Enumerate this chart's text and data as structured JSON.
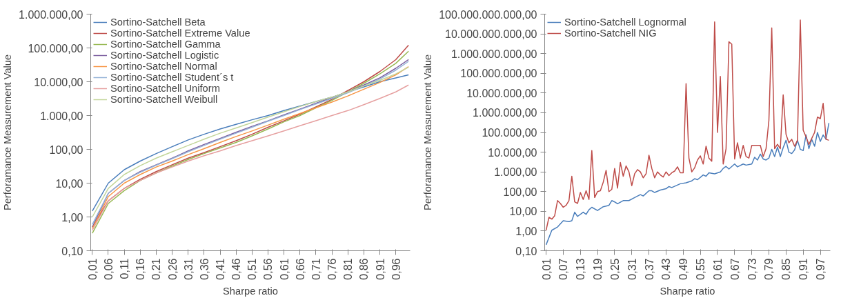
{
  "chart_data": [
    {
      "type": "line",
      "xlabel": "Sharpe ratio",
      "ylabel": "Perforamance Measurement Value",
      "log": "y",
      "legend": "top left",
      "grid": false,
      "marker": "none",
      "line_style": "solid",
      "xlim": [
        0.005,
        1.005
      ],
      "xticks": [
        {
          "value": 0.01,
          "label": "0,01"
        },
        {
          "value": 0.06,
          "label": "0,06"
        },
        {
          "value": 0.11,
          "label": "0,11"
        },
        {
          "value": 0.16,
          "label": "0,16"
        },
        {
          "value": 0.21,
          "label": "0,21"
        },
        {
          "value": 0.26,
          "label": "0,26"
        },
        {
          "value": 0.31,
          "label": "0,31"
        },
        {
          "value": 0.36,
          "label": "0,36"
        },
        {
          "value": 0.41,
          "label": "0,41"
        },
        {
          "value": 0.46,
          "label": "0,46"
        },
        {
          "value": 0.51,
          "label": "0,51"
        },
        {
          "value": 0.56,
          "label": "0,56"
        },
        {
          "value": 0.61,
          "label": "0,61"
        },
        {
          "value": 0.66,
          "label": "0,66"
        },
        {
          "value": 0.71,
          "label": "0,71"
        },
        {
          "value": 0.76,
          "label": "0,76"
        },
        {
          "value": 0.81,
          "label": "0,81"
        },
        {
          "value": 0.86,
          "label": "0,86"
        },
        {
          "value": 0.91,
          "label": "0,91"
        },
        {
          "value": 0.96,
          "label": "0,96"
        }
      ],
      "ylim": [
        0.1,
        1000000
      ],
      "yticks": [
        {
          "value": 0.1,
          "label": "0,10"
        },
        {
          "value": 1,
          "label": "1,00"
        },
        {
          "value": 10,
          "label": "10,00"
        },
        {
          "value": 100,
          "label": "100,00"
        },
        {
          "value": 1000,
          "label": "1.000,00"
        },
        {
          "value": 10000,
          "label": "10.000,00"
        },
        {
          "value": 100000,
          "label": "100.000,00"
        },
        {
          "value": 1000000,
          "label": "1.000.000,00"
        }
      ],
      "x": [
        0.01,
        0.06,
        0.11,
        0.16,
        0.21,
        0.26,
        0.31,
        0.36,
        0.41,
        0.46,
        0.51,
        0.56,
        0.61,
        0.66,
        0.71,
        0.76,
        0.81,
        0.86,
        0.91,
        0.96,
        1.0
      ],
      "series": [
        {
          "name": "Sortino-Satchell Beta",
          "color": "#4a7ebb",
          "values": [
            1.5,
            10,
            25,
            45,
            75,
            120,
            190,
            280,
            400,
            550,
            750,
            1000,
            1400,
            1900,
            2600,
            3500,
            5000,
            7000,
            10000,
            13000,
            16000
          ]
        },
        {
          "name": "Sortino-Satchell Extreme Value",
          "color": "#be4b48",
          "values": [
            0.5,
            3,
            7,
            13,
            22,
            35,
            55,
            80,
            120,
            180,
            280,
            450,
            700,
            1100,
            1800,
            3000,
            5500,
            10000,
            20000,
            45000,
            120000
          ]
        },
        {
          "name": "Sortino-Satchell Gamma",
          "color": "#98b954",
          "values": [
            0.33,
            2.5,
            6,
            12,
            20,
            32,
            50,
            75,
            110,
            160,
            250,
            400,
            650,
            1000,
            1700,
            2800,
            5000,
            9000,
            17000,
            35000,
            80000
          ]
        },
        {
          "name": "Sortino-Satchell Logistic",
          "color": "#7d60a0",
          "values": [
            0.5,
            5,
            12,
            22,
            35,
            55,
            90,
            140,
            210,
            320,
            480,
            700,
            1050,
            1550,
            2300,
            3400,
            5000,
            8000,
            13000,
            25000,
            45000
          ]
        },
        {
          "name": "Sortino-Satchell Normal",
          "color": "#f79646",
          "values": [
            0.45,
            4,
            10,
            18,
            30,
            45,
            70,
            105,
            160,
            240,
            350,
            520,
            780,
            1150,
            1700,
            2500,
            3800,
            6000,
            9500,
            16000,
            28000
          ]
        },
        {
          "name": "Sortino-Satchell Student´s t",
          "color": "#95b3d7",
          "values": [
            0.6,
            5,
            12,
            21,
            34,
            53,
            85,
            130,
            200,
            300,
            450,
            680,
            1000,
            1500,
            2200,
            3200,
            4700,
            7500,
            12000,
            22000,
            40000
          ]
        },
        {
          "name": "Sortino-Satchell Uniform",
          "color": "#e6a0a0",
          "values": [
            0.4,
            3,
            7,
            12,
            20,
            30,
            45,
            65,
            90,
            130,
            180,
            250,
            350,
            500,
            700,
            1000,
            1400,
            2100,
            3200,
            5000,
            8000
          ]
        },
        {
          "name": "Sortino-Satchell Weibull",
          "color": "#c3d69b",
          "values": [
            1.0,
            7,
            18,
            33,
            55,
            85,
            130,
            200,
            300,
            430,
            620,
            900,
            1300,
            1850,
            2600,
            3500,
            5000,
            7500,
            11000,
            17000,
            27000
          ]
        }
      ]
    },
    {
      "type": "line",
      "xlabel": "Sharpe ratio",
      "ylabel": "Perforamance Measurement Value",
      "log": "y",
      "legend": "top left",
      "grid": false,
      "marker": "none",
      "line_style": "solid",
      "xlim": [
        0.005,
        1.005
      ],
      "xticks": [
        {
          "value": 0.01,
          "label": "0,01"
        },
        {
          "value": 0.07,
          "label": "0,07"
        },
        {
          "value": 0.13,
          "label": "0,13"
        },
        {
          "value": 0.19,
          "label": "0,19"
        },
        {
          "value": 0.25,
          "label": "0,25"
        },
        {
          "value": 0.31,
          "label": "0,31"
        },
        {
          "value": 0.37,
          "label": "0,37"
        },
        {
          "value": 0.43,
          "label": "0,43"
        },
        {
          "value": 0.49,
          "label": "0,49"
        },
        {
          "value": 0.55,
          "label": "0,55"
        },
        {
          "value": 0.61,
          "label": "0,61"
        },
        {
          "value": 0.67,
          "label": "0,67"
        },
        {
          "value": 0.73,
          "label": "0,73"
        },
        {
          "value": 0.79,
          "label": "0,79"
        },
        {
          "value": 0.85,
          "label": "0,85"
        },
        {
          "value": 0.91,
          "label": "0,91"
        },
        {
          "value": 0.97,
          "label": "0,97"
        }
      ],
      "ylim": [
        0.1,
        100000000000
      ],
      "yticks": [
        {
          "value": 0.1,
          "label": "0,10"
        },
        {
          "value": 1,
          "label": "1,00"
        },
        {
          "value": 10,
          "label": "10,00"
        },
        {
          "value": 100,
          "label": "100,00"
        },
        {
          "value": 1000,
          "label": "1.000,00"
        },
        {
          "value": 10000,
          "label": "10.000,00"
        },
        {
          "value": 100000,
          "label": "100.000,00"
        },
        {
          "value": 1000000,
          "label": "1.000.000,00"
        },
        {
          "value": 10000000,
          "label": "10.000.000,00"
        },
        {
          "value": 100000000,
          "label": "100.000.000,00"
        },
        {
          "value": 1000000000,
          "label": "1.000.000.000,00"
        },
        {
          "value": 10000000000,
          "label": "10.000.000.000,00"
        },
        {
          "value": 100000000000,
          "label": "100.000.000.000,00"
        }
      ],
      "series": [
        {
          "name": "Sortino-Satchell Lognormal",
          "color": "#4a7ebb",
          "x": [
            0.01,
            0.03,
            0.05,
            0.07,
            0.09,
            0.1,
            0.11,
            0.12,
            0.14,
            0.15,
            0.16,
            0.17,
            0.19,
            0.21,
            0.23,
            0.24,
            0.25,
            0.26,
            0.28,
            0.3,
            0.32,
            0.34,
            0.35,
            0.37,
            0.38,
            0.39,
            0.41,
            0.43,
            0.44,
            0.45,
            0.48,
            0.5,
            0.52,
            0.53,
            0.54,
            0.56,
            0.57,
            0.58,
            0.6,
            0.62,
            0.63,
            0.64,
            0.65,
            0.67,
            0.68,
            0.7,
            0.71,
            0.73,
            0.74,
            0.75,
            0.76,
            0.77,
            0.78,
            0.79,
            0.8,
            0.81,
            0.82,
            0.83,
            0.84,
            0.85,
            0.86,
            0.87,
            0.88,
            0.89,
            0.9,
            0.91,
            0.92,
            0.93,
            0.94,
            0.95,
            0.96,
            0.97,
            0.98,
            0.99,
            1.0
          ],
          "values": [
            0.2,
            1.1,
            1.6,
            3.3,
            3,
            3.3,
            9,
            5.5,
            9,
            7,
            12,
            16,
            11,
            17,
            20,
            35,
            30,
            24,
            35,
            35,
            50,
            70,
            60,
            110,
            110,
            90,
            120,
            140,
            180,
            160,
            250,
            280,
            350,
            450,
            400,
            700,
            600,
            900,
            800,
            1000,
            1500,
            1900,
            1400,
            2500,
            1800,
            2500,
            2200,
            2500,
            5500,
            4000,
            8000,
            4500,
            4000,
            5000,
            14000,
            6000,
            18000,
            6000,
            17000,
            40000,
            10000,
            8500,
            13000,
            40000,
            14000,
            12000,
            75000,
            15000,
            45000,
            20000,
            100000,
            35000,
            75000,
            45000,
            300000
          ]
        },
        {
          "name": "Sortino-Satchell NIG",
          "color": "#be4b48",
          "x": [
            0.01,
            0.02,
            0.03,
            0.04,
            0.05,
            0.06,
            0.07,
            0.08,
            0.09,
            0.1,
            0.11,
            0.12,
            0.13,
            0.14,
            0.15,
            0.16,
            0.17,
            0.18,
            0.19,
            0.2,
            0.21,
            0.22,
            0.23,
            0.24,
            0.25,
            0.26,
            0.27,
            0.28,
            0.29,
            0.3,
            0.31,
            0.32,
            0.33,
            0.34,
            0.35,
            0.36,
            0.37,
            0.38,
            0.39,
            0.4,
            0.41,
            0.42,
            0.43,
            0.44,
            0.45,
            0.46,
            0.47,
            0.48,
            0.49,
            0.5,
            0.51,
            0.52,
            0.53,
            0.54,
            0.55,
            0.56,
            0.57,
            0.58,
            0.59,
            0.6,
            0.61,
            0.62,
            0.63,
            0.64,
            0.65,
            0.66,
            0.67,
            0.68,
            0.69,
            0.7,
            0.71,
            0.72,
            0.73,
            0.74,
            0.75,
            0.76,
            0.77,
            0.78,
            0.79,
            0.8,
            0.81,
            0.82,
            0.83,
            0.84,
            0.85,
            0.86,
            0.87,
            0.88,
            0.89,
            0.9,
            0.91,
            0.92,
            0.93,
            0.94,
            0.95,
            0.96,
            0.97,
            0.98,
            0.99,
            1.0
          ],
          "values": [
            1.1,
            5,
            4,
            6,
            35,
            25,
            16,
            20,
            35,
            600,
            30,
            25,
            90,
            40,
            110,
            40,
            12000,
            50,
            100,
            110,
            300,
            1200,
            100,
            130,
            1500,
            150,
            3000,
            600,
            2000,
            1000,
            200,
            800,
            1300,
            1000,
            500,
            800,
            7000,
            1500,
            500,
            1000,
            700,
            550,
            1000,
            650,
            900,
            1100,
            1800,
            900,
            900,
            30000000,
            5000,
            1000,
            1600,
            4000,
            6500,
            2500,
            20000,
            5000,
            3500,
            40000000000,
            100000,
            70000000,
            2500,
            15000,
            4000000000,
            3000000000,
            4500,
            30000,
            5000,
            22000,
            6000,
            5000,
            22000,
            22000,
            22000,
            22000,
            6000,
            15000,
            400000,
            20000000000,
            15000,
            25000,
            15000,
            8000000,
            80000,
            30000,
            45000,
            20000,
            40000,
            50000000000,
            130000,
            60000,
            25000,
            50000,
            100000,
            600000,
            500000,
            3000000,
            45000,
            40000
          ]
        }
      ]
    }
  ]
}
